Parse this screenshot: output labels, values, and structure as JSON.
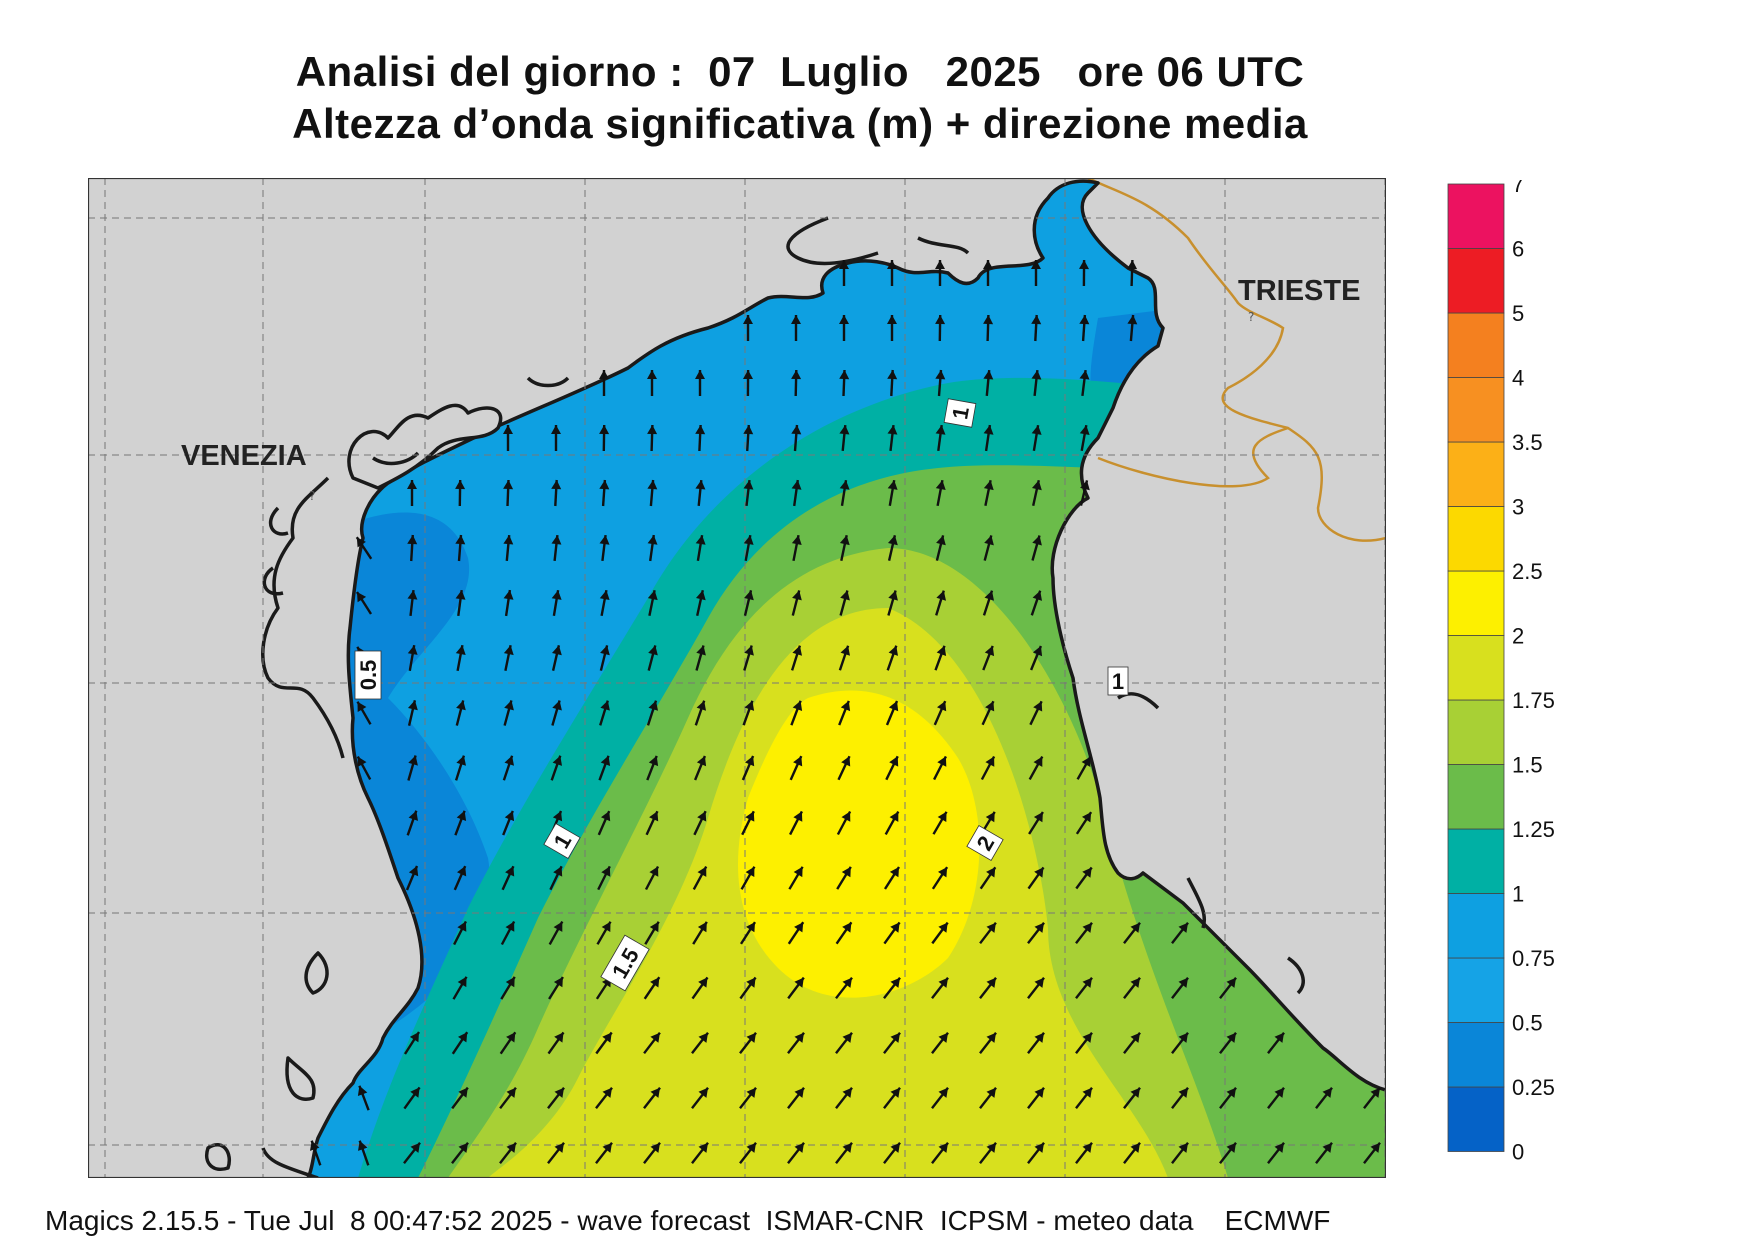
{
  "title": {
    "line1": "Analisi del giorno :  07  Luglio   2025   ore 06 UTC",
    "line2": "Altezza d’onda significativa (m) + direzione media"
  },
  "map": {
    "cities": [
      "VENEZIA",
      "TRIESTE"
    ],
    "contour_labels": [
      "1",
      "0.5",
      "1",
      "1",
      "2",
      "1.5"
    ],
    "arrow_direction": "predominantly north / north-east",
    "colors": {
      "sea_min": "#0562c7",
      "land": "#d2d2d2",
      "coast": "#1a1a1a",
      "border": "#c8902e"
    }
  },
  "legend": {
    "ticks": [
      "7",
      "6",
      "5",
      "4",
      "3.5",
      "3",
      "2.5",
      "2",
      "1.75",
      "1.5",
      "1.25",
      "1",
      "0.75",
      "0.5",
      "0.25",
      "0"
    ],
    "colors": [
      "#0562c7",
      "#0a86d8",
      "#15a3e6",
      "#0ea0e1",
      "#00b0a4",
      "#6bbc4a",
      "#a8d035",
      "#d8e01e",
      "#fdf000",
      "#fcd900",
      "#fcb017",
      "#f79021",
      "#f4801f",
      "#ed1c24",
      "#ec1260"
    ]
  },
  "footer": "Magics 2.15.5 - Tue Jul  8 00:47:52 2025 - wave forecast  ISMAR-CNR  ICPSM - meteo data    ECMWF"
}
